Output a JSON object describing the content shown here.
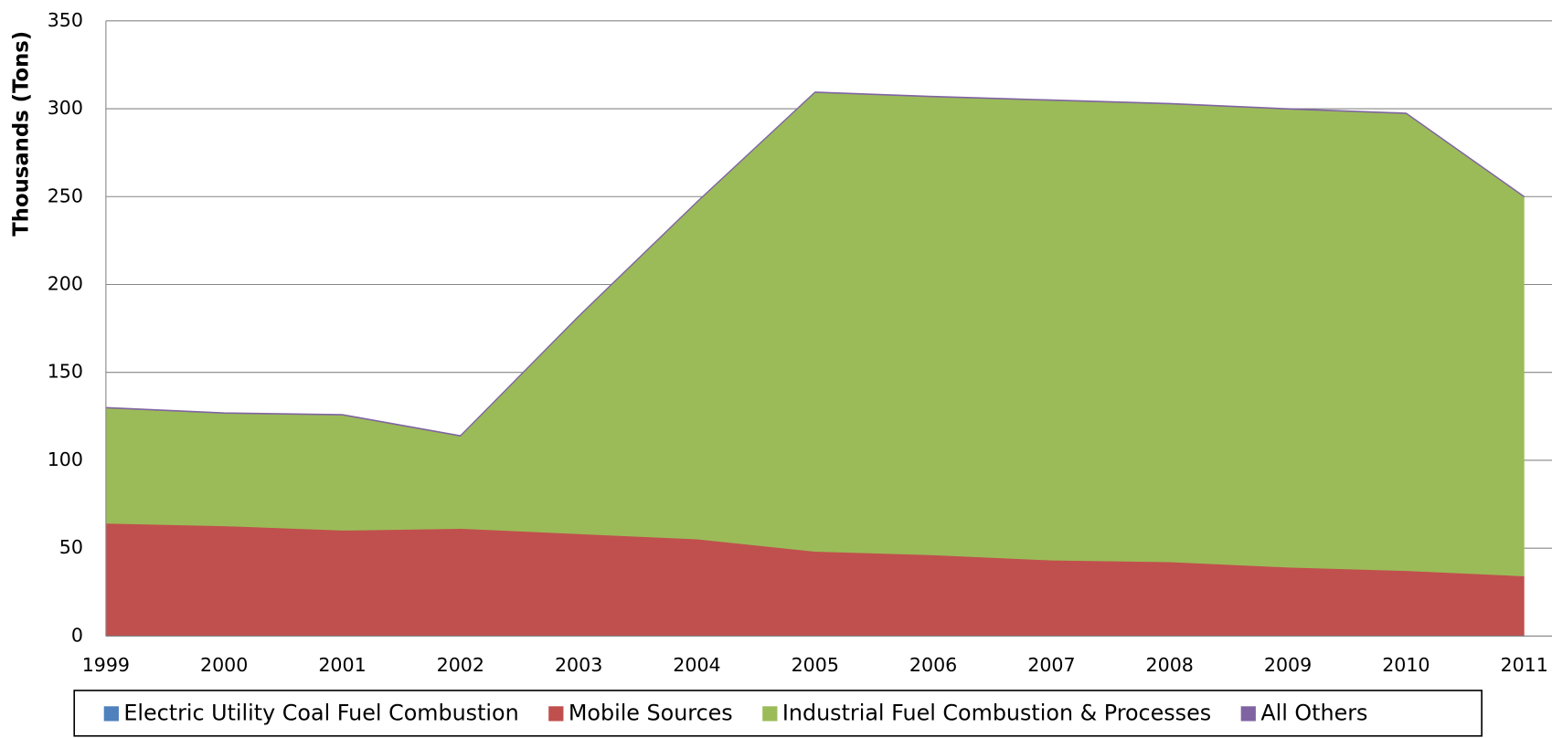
{
  "chart_data": {
    "type": "stacked_area",
    "y_label": "Thousands (Tons)",
    "categories": [
      "1999",
      "2000",
      "2001",
      "2002",
      "2003",
      "2004",
      "2005",
      "2006",
      "2007",
      "2008",
      "2009",
      "2010",
      "2011"
    ],
    "series": [
      {
        "name": "Electric Utility Coal Fuel Combustion",
        "color": "#4f81bd",
        "values": [
          0,
          0,
          0,
          0,
          0,
          0,
          0,
          0,
          0,
          0,
          0,
          0,
          0
        ]
      },
      {
        "name": "Mobile Sources",
        "color": "#c0504d",
        "values": [
          64,
          62.5,
          60,
          61,
          58,
          55,
          48,
          46,
          43,
          42,
          39,
          37,
          34
        ]
      },
      {
        "name": "Industrial Fuel Combustion & Processes",
        "color": "#9bbb59",
        "values": [
          65.5,
          64,
          65.5,
          52.5,
          123.5,
          191.5,
          261,
          260.5,
          261.5,
          260.5,
          260.5,
          260,
          215.5
        ]
      },
      {
        "name": "All Others",
        "color": "#8064a2",
        "values": [
          0.5,
          0.5,
          0.5,
          0.5,
          0.5,
          0.5,
          0.5,
          0.5,
          0.5,
          0.5,
          0.5,
          0.5,
          0.5
        ]
      }
    ],
    "ylim": [
      0,
      350
    ],
    "yticks": [
      0,
      50,
      100,
      150,
      200,
      250,
      300,
      350
    ],
    "grid": true,
    "legend": "bottom"
  }
}
